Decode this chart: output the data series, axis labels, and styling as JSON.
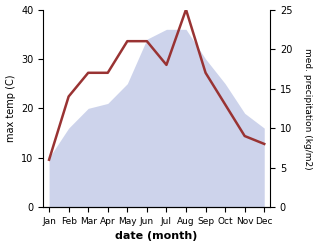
{
  "months": [
    "Jan",
    "Feb",
    "Mar",
    "Apr",
    "May",
    "Jun",
    "Jul",
    "Aug",
    "Sep",
    "Oct",
    "Nov",
    "Dec"
  ],
  "month_x": [
    0,
    1,
    2,
    3,
    4,
    5,
    6,
    7,
    8,
    9,
    10,
    11
  ],
  "temperature": [
    10,
    16,
    20,
    21,
    25,
    34,
    36,
    36,
    30,
    25,
    19,
    16
  ],
  "precipitation": [
    6,
    14,
    17,
    17,
    21,
    21,
    18,
    25,
    17,
    13,
    9,
    8
  ],
  "temp_fill_color": "#c5cce8",
  "temp_fill_alpha": 0.85,
  "precip_color": "#993333",
  "temp_ylim": [
    0,
    40
  ],
  "precip_ylim": [
    0,
    25
  ],
  "temp_yticks": [
    0,
    10,
    20,
    30,
    40
  ],
  "precip_yticks": [
    0,
    5,
    10,
    15,
    20,
    25
  ],
  "xlabel": "date (month)",
  "ylabel_left": "max temp (C)",
  "ylabel_right": "med. precipitation (kg/m2)"
}
